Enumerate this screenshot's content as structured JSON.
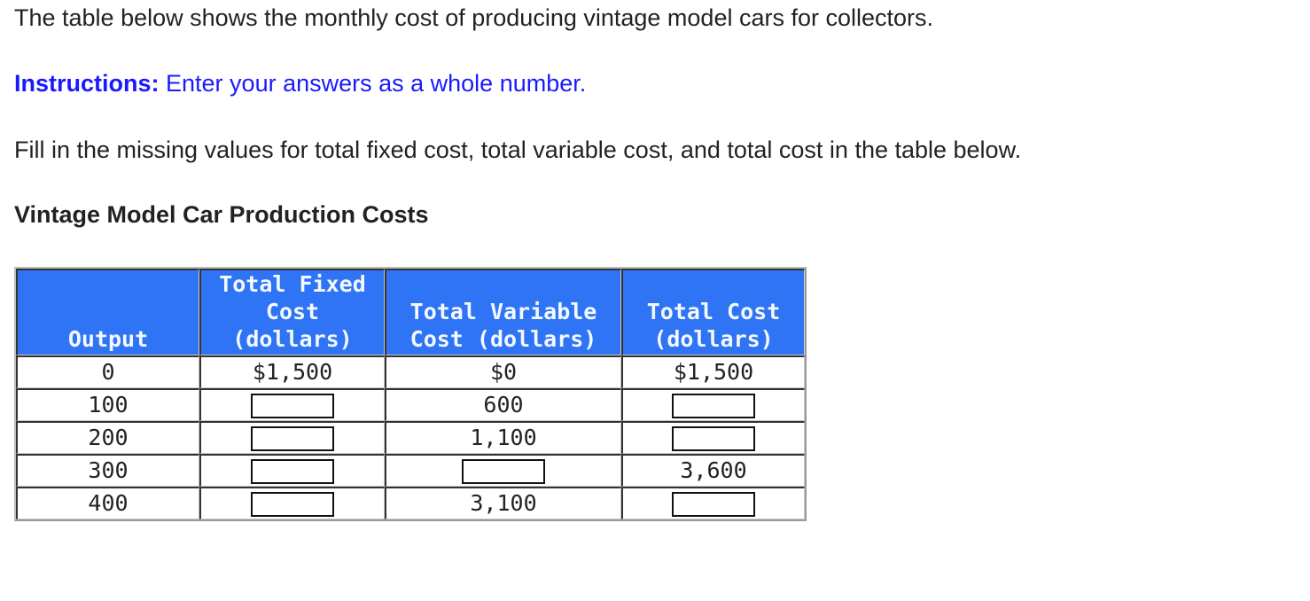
{
  "intro": "The table below shows the monthly cost of producing vintage model cars for collectors.",
  "instructions": {
    "label": "Instructions:",
    "text": " Enter your answers as a whole number."
  },
  "prompt": "Fill in the missing values for total fixed cost, total variable cost, and total cost in the table below.",
  "table": {
    "title": "Vintage Model Car Production Costs",
    "header_color": "#2f74f5",
    "headers": {
      "output": "Output",
      "tfc_line1": "Total Fixed",
      "tfc_line2": "Cost",
      "tfc_line3": "(dollars)",
      "tvc_line1": "Total Variable",
      "tvc_line2": "Cost (dollars)",
      "tc_line1": "Total Cost",
      "tc_line2": "(dollars)"
    },
    "rows": [
      {
        "output": "0",
        "tfc": "$1,500",
        "tvc": "$0",
        "tc": "$1,500"
      },
      {
        "output": "100",
        "tfc": "",
        "tvc": "600",
        "tc": ""
      },
      {
        "output": "200",
        "tfc": "",
        "tvc": "1,100",
        "tc": ""
      },
      {
        "output": "300",
        "tfc": "",
        "tvc": "",
        "tc": "3,600"
      },
      {
        "output": "400",
        "tfc": "",
        "tvc": "3,100",
        "tc": ""
      }
    ]
  }
}
